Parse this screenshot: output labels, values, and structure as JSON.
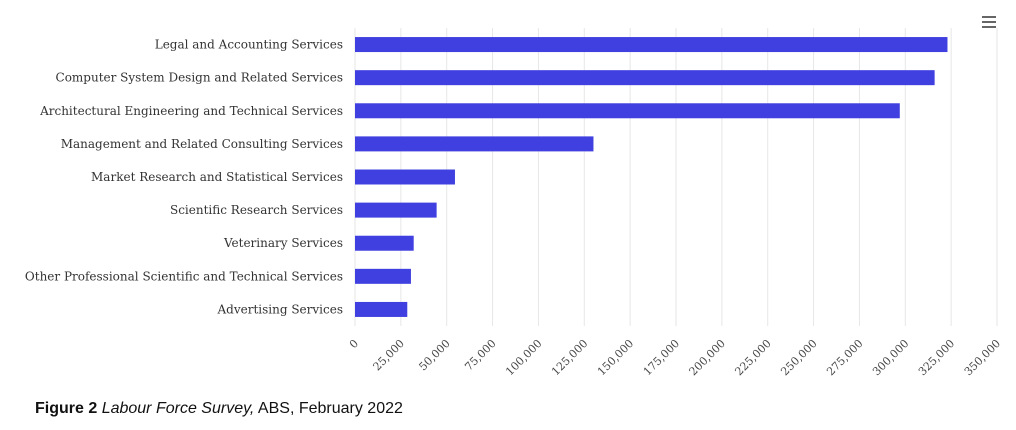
{
  "chart_data": {
    "type": "bar",
    "orientation": "horizontal",
    "categories": [
      "Legal and Accounting Services",
      "Computer System Design and Related Services",
      "Architectural Engineering and Technical Services",
      "Management and Related Consulting Services",
      "Market Research and Statistical Services",
      "Scientific Research Services",
      "Veterinary Services",
      "Other Professional Scientific and Technical Services",
      "Advertising Services"
    ],
    "values": [
      323000,
      316000,
      297000,
      130000,
      54500,
      44500,
      32000,
      30500,
      28500
    ],
    "xlim": [
      0,
      350000
    ],
    "ticks": [
      "0",
      "25,000",
      "50,000",
      "75,000",
      "100,000",
      "125,000",
      "150,000",
      "175,000",
      "200,000",
      "225,000",
      "250,000",
      "275,000",
      "300,000",
      "325,000",
      "350,000"
    ],
    "tick_values": [
      0,
      25000,
      50000,
      75000,
      100000,
      125000,
      150000,
      175000,
      200000,
      225000,
      250000,
      275000,
      300000,
      325000,
      350000
    ],
    "bar_color": "#4040e0",
    "grid": true
  },
  "caption": {
    "label": "Figure 2",
    "source_italic": "Labour Force Survey,",
    "rest": " ABS, February 2022"
  },
  "menu": {
    "icon": "hamburger-menu-icon"
  }
}
